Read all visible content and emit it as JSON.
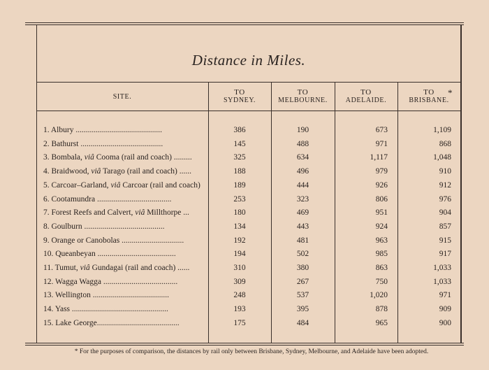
{
  "title": "Distance in Miles.",
  "headers": {
    "site": "Site.",
    "sydney": {
      "to": "To",
      "place": "Sydney."
    },
    "melbourne": {
      "to": "To",
      "place": "Melbourne."
    },
    "adelaide": {
      "to": "To",
      "place": "Adelaide."
    },
    "brisbane": {
      "to": "To",
      "place": "Brisbane."
    },
    "footnote_marker": "*"
  },
  "rows": [
    {
      "site": "1. Albury ...........................................",
      "sydney": "386",
      "melbourne": "190",
      "adelaide": "673",
      "brisbane": "1,109"
    },
    {
      "site": "2. Bathurst .........................................",
      "sydney": "145",
      "melbourne": "488",
      "adelaide": "971",
      "brisbane": "868"
    },
    {
      "site": "3. Bombala, viâ Cooma (rail and coach) .........",
      "sydney": "325",
      "melbourne": "634",
      "adelaide": "1,117",
      "brisbane": "1,048"
    },
    {
      "site": "4. Braidwood, viâ Tarago (rail and coach) ......",
      "sydney": "188",
      "melbourne": "496",
      "adelaide": "979",
      "brisbane": "910"
    },
    {
      "site": "5. Carcoar–Garland, viâ Carcoar (rail and coach)",
      "sydney": "189",
      "melbourne": "444",
      "adelaide": "926",
      "brisbane": "912"
    },
    {
      "site": "6. Cootamundra .....................................",
      "sydney": "253",
      "melbourne": "323",
      "adelaide": "806",
      "brisbane": "976"
    },
    {
      "site": "7. Forest Reefs and Calvert, viâ Millthorpe ...",
      "sydney": "180",
      "melbourne": "469",
      "adelaide": "951",
      "brisbane": "904"
    },
    {
      "site": "8. Goulburn ........................................",
      "sydney": "134",
      "melbourne": "443",
      "adelaide": "924",
      "brisbane": "857"
    },
    {
      "site": "9. Orange or Canobolas ...............................",
      "sydney": "192",
      "melbourne": "481",
      "adelaide": "963",
      "brisbane": "915"
    },
    {
      "site": "10. Queanbeyan .......................................",
      "sydney": "194",
      "melbourne": "502",
      "adelaide": "985",
      "brisbane": "917"
    },
    {
      "site": "11. Tumut, viâ Gundagai (rail and coach) ......",
      "sydney": "310",
      "melbourne": "380",
      "adelaide": "863",
      "brisbane": "1,033"
    },
    {
      "site": "12. Wagga Wagga .....................................",
      "sydney": "309",
      "melbourne": "267",
      "adelaide": "750",
      "brisbane": "1,033"
    },
    {
      "site": "13. Wellington ......................................",
      "sydney": "248",
      "melbourne": "537",
      "adelaide": "1,020",
      "brisbane": "971"
    },
    {
      "site": "14. Yass ................................................",
      "sydney": "193",
      "melbourne": "395",
      "adelaide": "878",
      "brisbane": "909"
    },
    {
      "site": "15. Lake George.........................................",
      "sydney": "175",
      "melbourne": "484",
      "adelaide": "965",
      "brisbane": "900"
    }
  ],
  "footnote": "* For the purposes of comparison, the distances by rail only between Brisbane, Sydney, Melbourne, and Adelaide have been adopted."
}
